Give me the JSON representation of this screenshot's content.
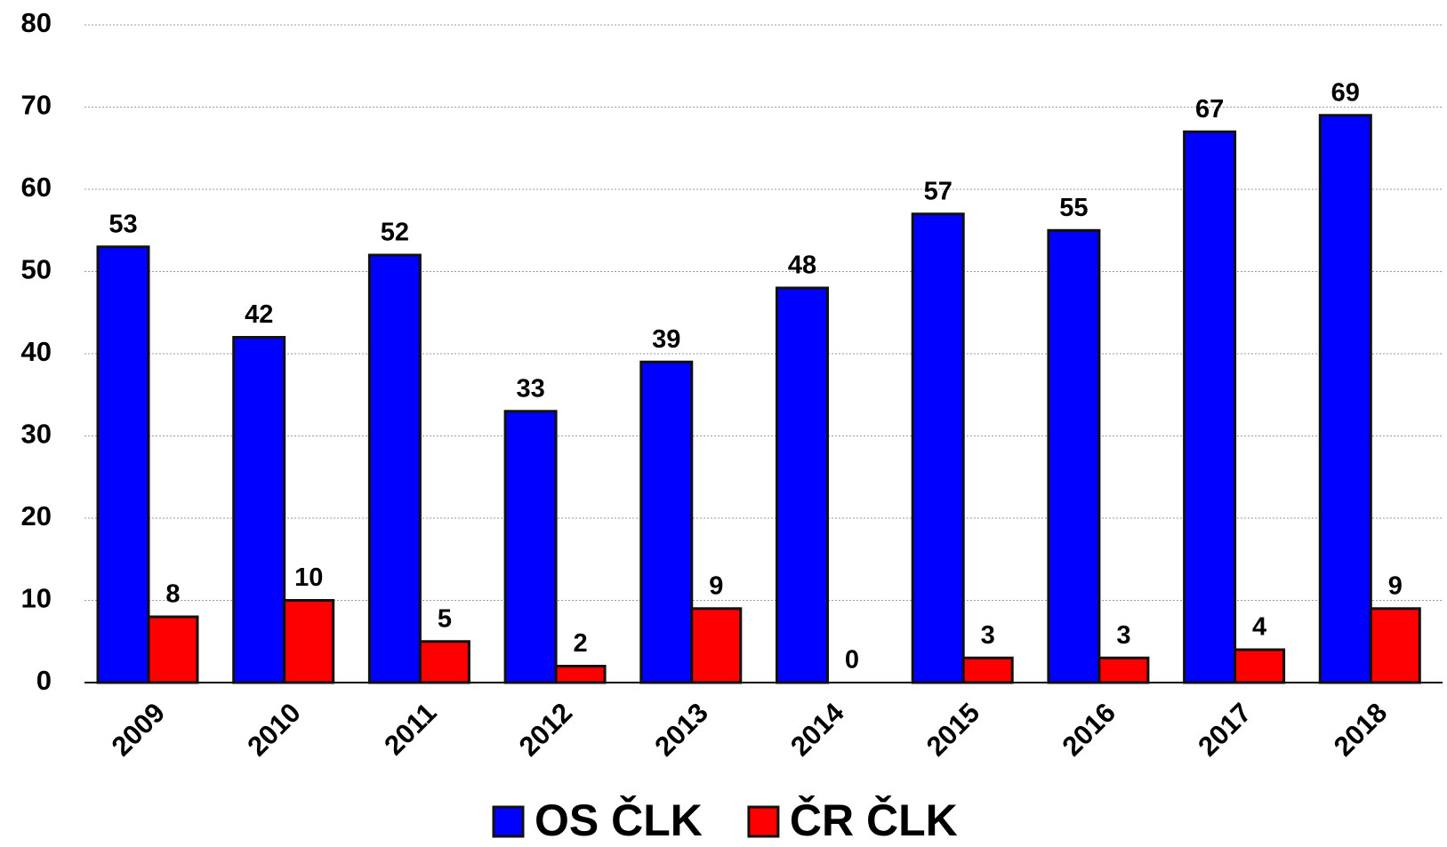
{
  "chart_data": {
    "type": "bar",
    "categories": [
      "2009",
      "2010",
      "2011",
      "2012",
      "2013",
      "2014",
      "2015",
      "2016",
      "2017",
      "2018"
    ],
    "series": [
      {
        "name": "OS ČLK",
        "color": "#0000ff",
        "values": [
          53,
          42,
          52,
          33,
          39,
          48,
          57,
          55,
          67,
          69
        ]
      },
      {
        "name": "ČR ČLK",
        "color": "#ff0000",
        "values": [
          8,
          10,
          5,
          2,
          9,
          0,
          3,
          3,
          4,
          9
        ]
      }
    ],
    "ylim": [
      0,
      80
    ],
    "yticks": [
      0,
      10,
      20,
      30,
      40,
      50,
      60,
      70,
      80
    ],
    "grid": true,
    "legend": "bottom"
  }
}
